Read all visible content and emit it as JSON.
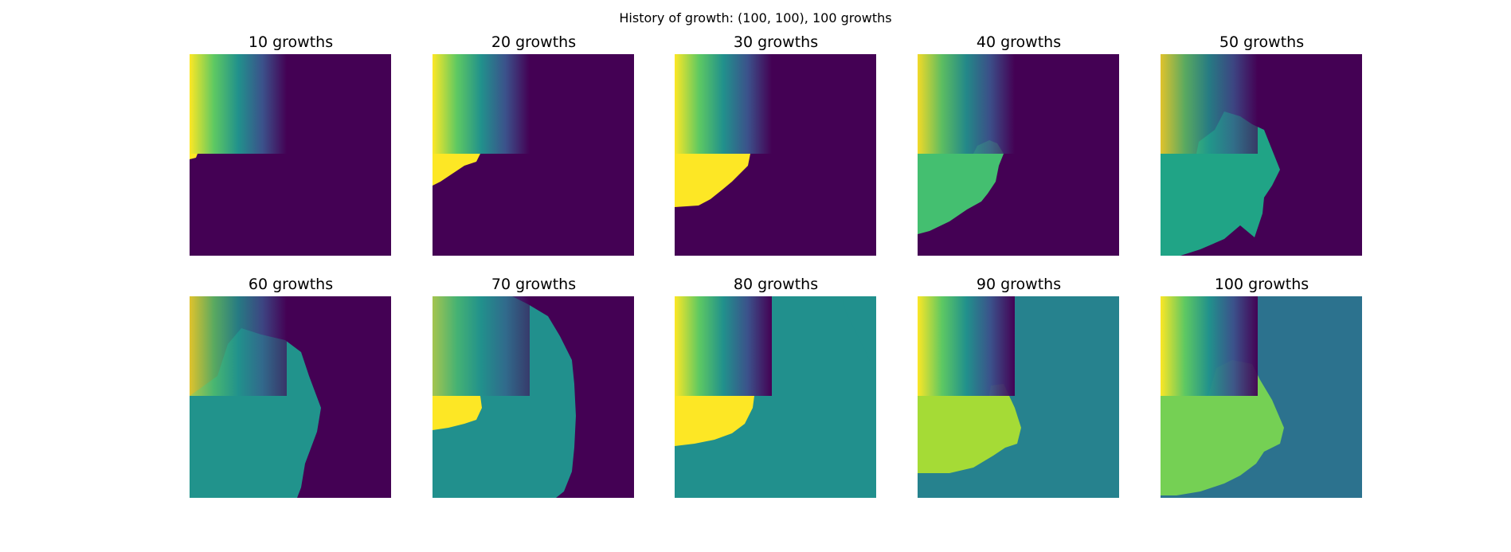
{
  "figure": {
    "title": "History of growth: (100, 100), 100 growths"
  },
  "colors": {
    "background": "#440154",
    "gradient_stops": [
      "#fde725",
      "#5ec962",
      "#21918c",
      "#3b528b",
      "#440154"
    ]
  },
  "chart_data": [
    {
      "type": "heatmap",
      "title": "10 growths",
      "grid": "off",
      "gradient_alpha": 1.0,
      "region_color": "#fde725",
      "blob_color": "#440154"
    },
    {
      "type": "heatmap",
      "title": "20 growths",
      "grid": "off",
      "gradient_alpha": 1.0,
      "region_color": "#fde725",
      "blob_color": "#440154"
    },
    {
      "type": "heatmap",
      "title": "30 growths",
      "grid": "off",
      "gradient_alpha": 1.0,
      "region_color": "#fde725",
      "blob_color": "#440154"
    },
    {
      "type": "heatmap",
      "title": "40 growths",
      "grid": "off",
      "gradient_alpha": 0.7,
      "region_color": "#44bf70",
      "blob_color": "#44bf70",
      "top_patch_color": "#c9df23"
    },
    {
      "type": "heatmap",
      "title": "50 growths",
      "grid": "off",
      "gradient_alpha": 0.55,
      "region_color": "#20a486",
      "blob_color": "#20a486",
      "top_patch_color": "#b5de2b"
    },
    {
      "type": "heatmap",
      "title": "60 growths",
      "grid": "off",
      "gradient_alpha": 0.55,
      "region_color": "#21938c",
      "blob_color": "#21938c",
      "top_patch_color": "#d2e21b"
    },
    {
      "type": "heatmap",
      "title": "70 growths",
      "grid": "off",
      "gradient_alpha": 0.5,
      "region_color": "#21908d",
      "blob_color": "#21908d",
      "top_patch_color": "#bade28",
      "yellow_patch": "#fde725"
    },
    {
      "type": "heatmap",
      "title": "80 growths",
      "grid": "off",
      "gradient_alpha": 1.0,
      "region_color": "#21908d",
      "blob_color": "#21908d",
      "top_patch_color": "#fde725",
      "yellow_patch": "#fde725",
      "bg_override": "#21908d"
    },
    {
      "type": "heatmap",
      "title": "90 growths",
      "grid": "off",
      "gradient_alpha": 0.85,
      "region_color": "#a5db36",
      "blob_color": "#a5db36",
      "top_patch_color": "#fde725",
      "bg_override": "#26828e"
    },
    {
      "type": "heatmap",
      "title": "100 growths",
      "grid": "off",
      "gradient_alpha": 0.85,
      "region_color": "#75d054",
      "blob_color": "#75d054",
      "top_patch_color": "#fde725",
      "bg_override": "#2c728e"
    }
  ]
}
